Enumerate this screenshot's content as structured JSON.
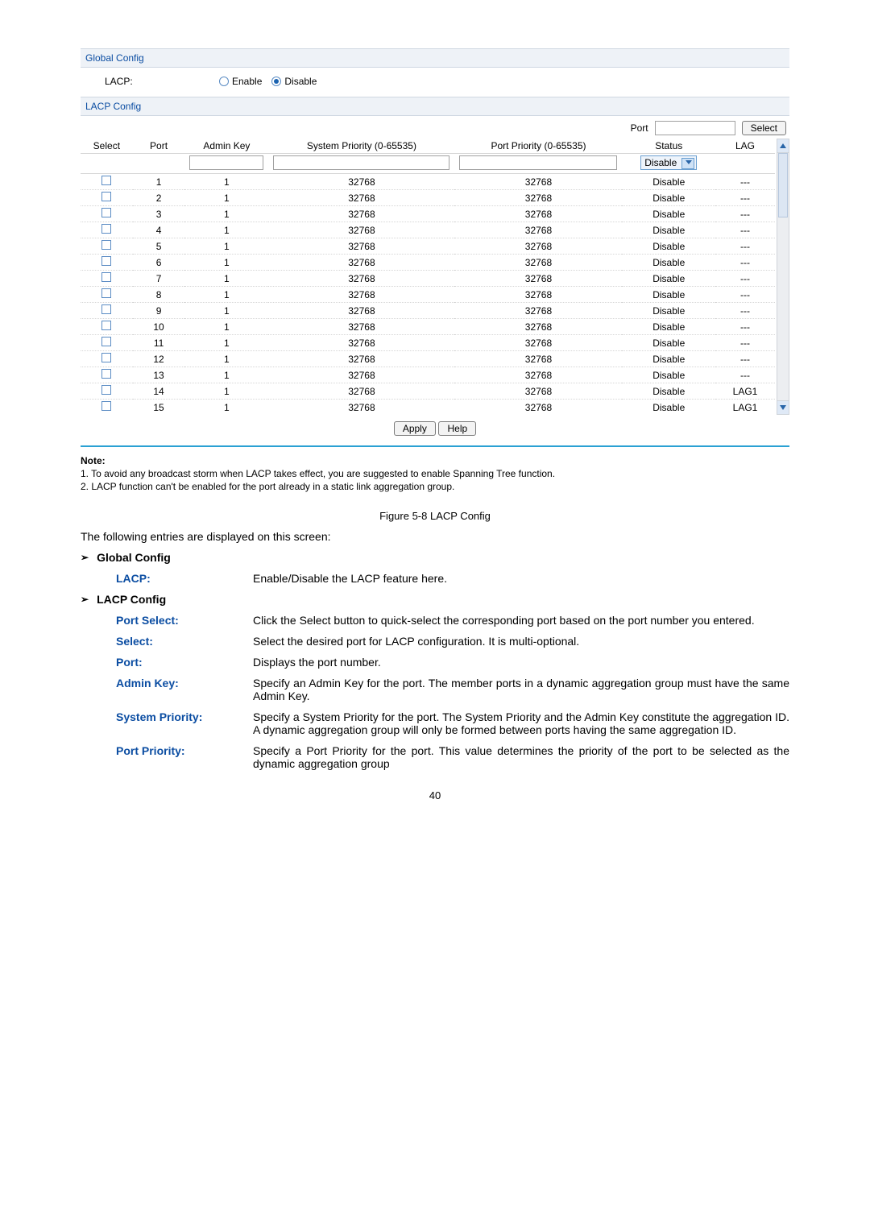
{
  "screenshot": {
    "global_config": {
      "section_title": "Global Config",
      "lacp_label": "LACP:",
      "enable_label": "Enable",
      "disable_label": "Disable",
      "selection": "Disable"
    },
    "lacp_config": {
      "section_title": "LACP Config",
      "port_select_label": "Port",
      "select_button": "Select",
      "columns": {
        "select": "Select",
        "port": "Port",
        "admin_key": "Admin Key",
        "system_priority": "System Priority (0-65535)",
        "port_priority": "Port Priority (0-65535)",
        "status": "Status",
        "lag": "LAG"
      },
      "filter_row": {
        "admin_key": "",
        "system_priority": "",
        "port_priority": "",
        "status": "Disable"
      },
      "rows": [
        {
          "port": "1",
          "admin_key": "1",
          "sys": "32768",
          "pp": "32768",
          "status": "Disable",
          "lag": "---"
        },
        {
          "port": "2",
          "admin_key": "1",
          "sys": "32768",
          "pp": "32768",
          "status": "Disable",
          "lag": "---"
        },
        {
          "port": "3",
          "admin_key": "1",
          "sys": "32768",
          "pp": "32768",
          "status": "Disable",
          "lag": "---"
        },
        {
          "port": "4",
          "admin_key": "1",
          "sys": "32768",
          "pp": "32768",
          "status": "Disable",
          "lag": "---"
        },
        {
          "port": "5",
          "admin_key": "1",
          "sys": "32768",
          "pp": "32768",
          "status": "Disable",
          "lag": "---"
        },
        {
          "port": "6",
          "admin_key": "1",
          "sys": "32768",
          "pp": "32768",
          "status": "Disable",
          "lag": "---"
        },
        {
          "port": "7",
          "admin_key": "1",
          "sys": "32768",
          "pp": "32768",
          "status": "Disable",
          "lag": "---"
        },
        {
          "port": "8",
          "admin_key": "1",
          "sys": "32768",
          "pp": "32768",
          "status": "Disable",
          "lag": "---"
        },
        {
          "port": "9",
          "admin_key": "1",
          "sys": "32768",
          "pp": "32768",
          "status": "Disable",
          "lag": "---"
        },
        {
          "port": "10",
          "admin_key": "1",
          "sys": "32768",
          "pp": "32768",
          "status": "Disable",
          "lag": "---"
        },
        {
          "port": "11",
          "admin_key": "1",
          "sys": "32768",
          "pp": "32768",
          "status": "Disable",
          "lag": "---"
        },
        {
          "port": "12",
          "admin_key": "1",
          "sys": "32768",
          "pp": "32768",
          "status": "Disable",
          "lag": "---"
        },
        {
          "port": "13",
          "admin_key": "1",
          "sys": "32768",
          "pp": "32768",
          "status": "Disable",
          "lag": "---"
        },
        {
          "port": "14",
          "admin_key": "1",
          "sys": "32768",
          "pp": "32768",
          "status": "Disable",
          "lag": "LAG1"
        },
        {
          "port": "15",
          "admin_key": "1",
          "sys": "32768",
          "pp": "32768",
          "status": "Disable",
          "lag": "LAG1"
        }
      ],
      "apply_button": "Apply",
      "help_button": "Help"
    },
    "note": {
      "title": "Note:",
      "items": [
        "1. To avoid any broadcast storm when LACP takes effect, you are suggested to enable Spanning Tree function.",
        "2. LACP function can't be enabled for the port already in a static link aggregation group."
      ]
    }
  },
  "figure_caption": "Figure 5-8 LACP Config",
  "intro_text": "The following entries are displayed on this screen:",
  "sections": {
    "global": {
      "heading": "Global Config",
      "items": [
        {
          "term": "LACP:",
          "desc": "Enable/Disable the LACP feature here."
        }
      ]
    },
    "lacp": {
      "heading": "LACP Config",
      "items": [
        {
          "term": "Port Select:",
          "desc": "Click the Select button to quick-select the corresponding port based on the port number you entered."
        },
        {
          "term": "Select:",
          "desc": "Select the desired port for LACP configuration. It is multi-optional."
        },
        {
          "term": "Port:",
          "desc": "Displays the port number."
        },
        {
          "term": "Admin Key:",
          "desc": "Specify an Admin Key for the port. The member ports in a dynamic aggregation group must have the same Admin Key."
        },
        {
          "term": "System Priority:",
          "desc": "Specify a System Priority for the port. The System Priority and the Admin Key constitute the aggregation ID. A dynamic aggregation group will only be formed between ports having the same aggregation ID."
        },
        {
          "term": "Port Priority:",
          "desc": "Specify a Port Priority for the port. This value determines the priority of the port to be selected as the dynamic aggregation group"
        }
      ]
    }
  },
  "page_number": "40",
  "colors": {
    "section_bg": "#eef2f7",
    "accent": "#0b4da2",
    "hr": "#2aa1d3"
  }
}
